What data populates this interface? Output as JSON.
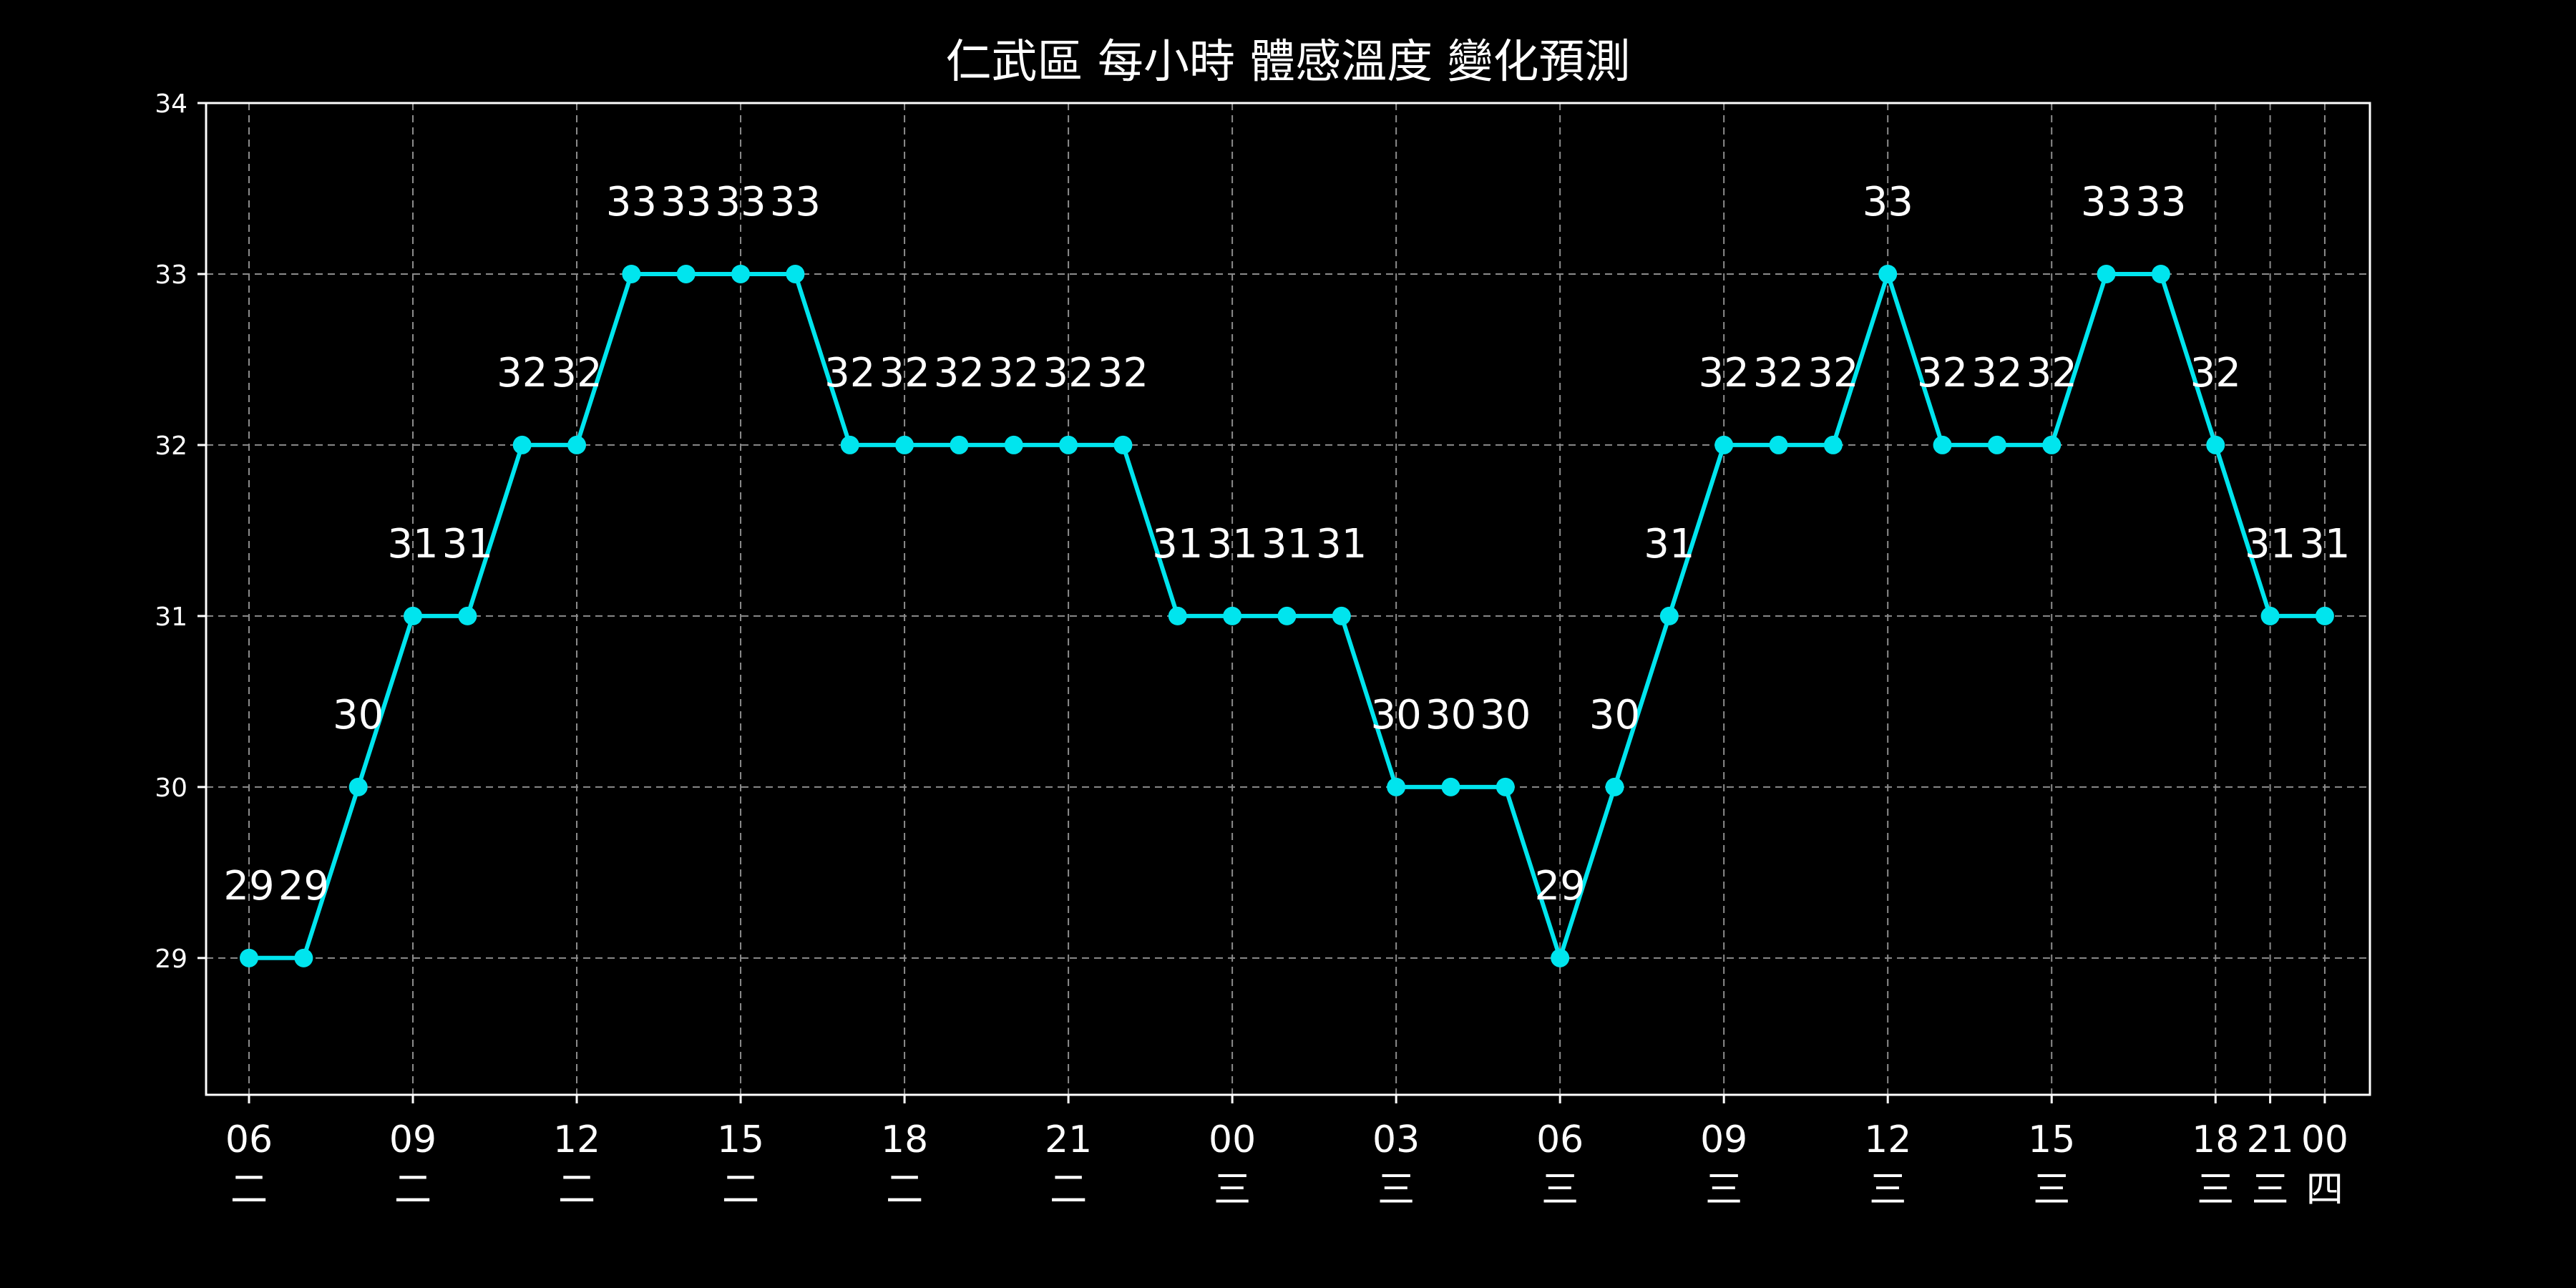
{
  "chart_data": {
    "type": "line",
    "title": "仁武區 每小時 體感溫度 變化預測",
    "xlabel": "",
    "ylabel": "",
    "ylim": [
      28.2,
      34
    ],
    "y_ticks": [
      29,
      30,
      31,
      32,
      33,
      34
    ],
    "grid": true,
    "series": [
      {
        "values": [
          29,
          29,
          30,
          31,
          31,
          32,
          32,
          33,
          33,
          33,
          33,
          32,
          32,
          32,
          32,
          32,
          32,
          31,
          31,
          31,
          31,
          30,
          30,
          30,
          29,
          30,
          31,
          32,
          32,
          32,
          33,
          32,
          32,
          32,
          33,
          33,
          32,
          31,
          31
        ]
      }
    ],
    "x_ticks": [
      {
        "index": 0,
        "hour": "06",
        "day": "二"
      },
      {
        "index": 3,
        "hour": "09",
        "day": "二"
      },
      {
        "index": 6,
        "hour": "12",
        "day": "二"
      },
      {
        "index": 9,
        "hour": "15",
        "day": "二"
      },
      {
        "index": 12,
        "hour": "18",
        "day": "二"
      },
      {
        "index": 15,
        "hour": "21",
        "day": "二"
      },
      {
        "index": 18,
        "hour": "00",
        "day": "三"
      },
      {
        "index": 21,
        "hour": "03",
        "day": "三"
      },
      {
        "index": 24,
        "hour": "06",
        "day": "三"
      },
      {
        "index": 27,
        "hour": "09",
        "day": "三"
      },
      {
        "index": 30,
        "hour": "12",
        "day": "三"
      },
      {
        "index": 33,
        "hour": "15",
        "day": "三"
      },
      {
        "index": 36,
        "hour": "18",
        "day": "三"
      },
      {
        "index": 37,
        "hour": "21",
        "day": "三"
      },
      {
        "index": 38,
        "hour": "00",
        "day": "四"
      }
    ]
  },
  "colors": {
    "background": "#000000",
    "line": "#00e5ee",
    "text": "#ffffff",
    "grid": "#8c8c8c"
  }
}
